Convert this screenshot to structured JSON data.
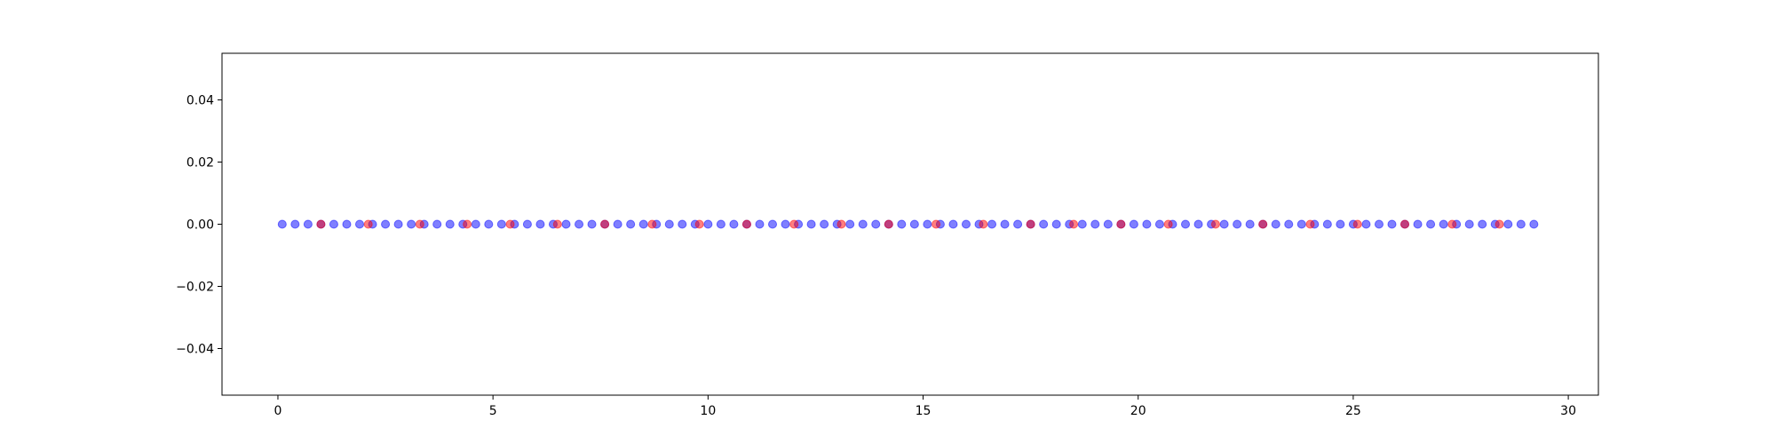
{
  "chart_data": {
    "type": "scatter",
    "title": "",
    "xlabel": "",
    "ylabel": "",
    "xlim": [
      -1.3,
      30.7
    ],
    "ylim": [
      -0.055,
      0.055
    ],
    "grid": false,
    "legend": "none",
    "x_ticks": [
      0,
      5,
      10,
      15,
      20,
      25,
      30
    ],
    "x_tick_labels": [
      "0",
      "5",
      "10",
      "15",
      "20",
      "25",
      "30"
    ],
    "y_ticks": [
      -0.04,
      -0.02,
      0.0,
      0.02,
      0.04
    ],
    "y_tick_labels": [
      "−0.04",
      "−0.02",
      "0.00",
      "0.02",
      "0.04"
    ],
    "series": [
      {
        "color": "#0000ff",
        "alpha": 0.5,
        "marker": "circle",
        "x": [
          0.1,
          0.4,
          0.7,
          1.0,
          1.3,
          1.6,
          1.9,
          2.2,
          2.5,
          2.8,
          3.1,
          3.4,
          3.7,
          4.0,
          4.3,
          4.6,
          4.9,
          5.2,
          5.5,
          5.8,
          6.1,
          6.4,
          6.7,
          7.0,
          7.3,
          7.6,
          7.9,
          8.2,
          8.5,
          8.8,
          9.1,
          9.4,
          9.7,
          10.0,
          10.3,
          10.6,
          10.9,
          11.2,
          11.5,
          11.8,
          12.1,
          12.4,
          12.7,
          13.0,
          13.3,
          13.6,
          13.9,
          14.2,
          14.5,
          14.8,
          15.1,
          15.4,
          15.7,
          16.0,
          16.3,
          16.6,
          16.9,
          17.2,
          17.5,
          17.8,
          18.1,
          18.4,
          18.7,
          19.0,
          19.3,
          19.6,
          19.9,
          20.2,
          20.5,
          20.8,
          21.1,
          21.4,
          21.7,
          22.0,
          22.3,
          22.6,
          22.9,
          23.2,
          23.5,
          23.8,
          24.1,
          24.4,
          24.7,
          25.0,
          25.3,
          25.6,
          25.9,
          26.2,
          26.5,
          26.8,
          27.1,
          27.4,
          27.7,
          28.0,
          28.3,
          28.6,
          28.9,
          29.2
        ],
        "y": [
          0,
          0,
          0,
          0,
          0,
          0,
          0,
          0,
          0,
          0,
          0,
          0,
          0,
          0,
          0,
          0,
          0,
          0,
          0,
          0,
          0,
          0,
          0,
          0,
          0,
          0,
          0,
          0,
          0,
          0,
          0,
          0,
          0,
          0,
          0,
          0,
          0,
          0,
          0,
          0,
          0,
          0,
          0,
          0,
          0,
          0,
          0,
          0,
          0,
          0,
          0,
          0,
          0,
          0,
          0,
          0,
          0,
          0,
          0,
          0,
          0,
          0,
          0,
          0,
          0,
          0,
          0,
          0,
          0,
          0,
          0,
          0,
          0,
          0,
          0,
          0,
          0,
          0,
          0,
          0,
          0,
          0,
          0,
          0,
          0,
          0,
          0,
          0,
          0,
          0,
          0,
          0,
          0,
          0,
          0,
          0,
          0,
          0
        ]
      },
      {
        "color": "#ff0000",
        "alpha": 0.5,
        "marker": "circle",
        "x": [
          1.0,
          2.1,
          3.3,
          4.4,
          5.4,
          6.5,
          7.6,
          8.7,
          9.8,
          10.9,
          12.0,
          13.1,
          14.2,
          15.3,
          16.4,
          17.5,
          18.5,
          19.6,
          20.7,
          21.8,
          22.9,
          24.0,
          25.1,
          26.2,
          27.3,
          28.4
        ],
        "y": [
          0,
          0,
          0,
          0,
          0,
          0,
          0,
          0,
          0,
          0,
          0,
          0,
          0,
          0,
          0,
          0,
          0,
          0,
          0,
          0,
          0,
          0,
          0,
          0,
          0,
          0
        ]
      }
    ]
  }
}
